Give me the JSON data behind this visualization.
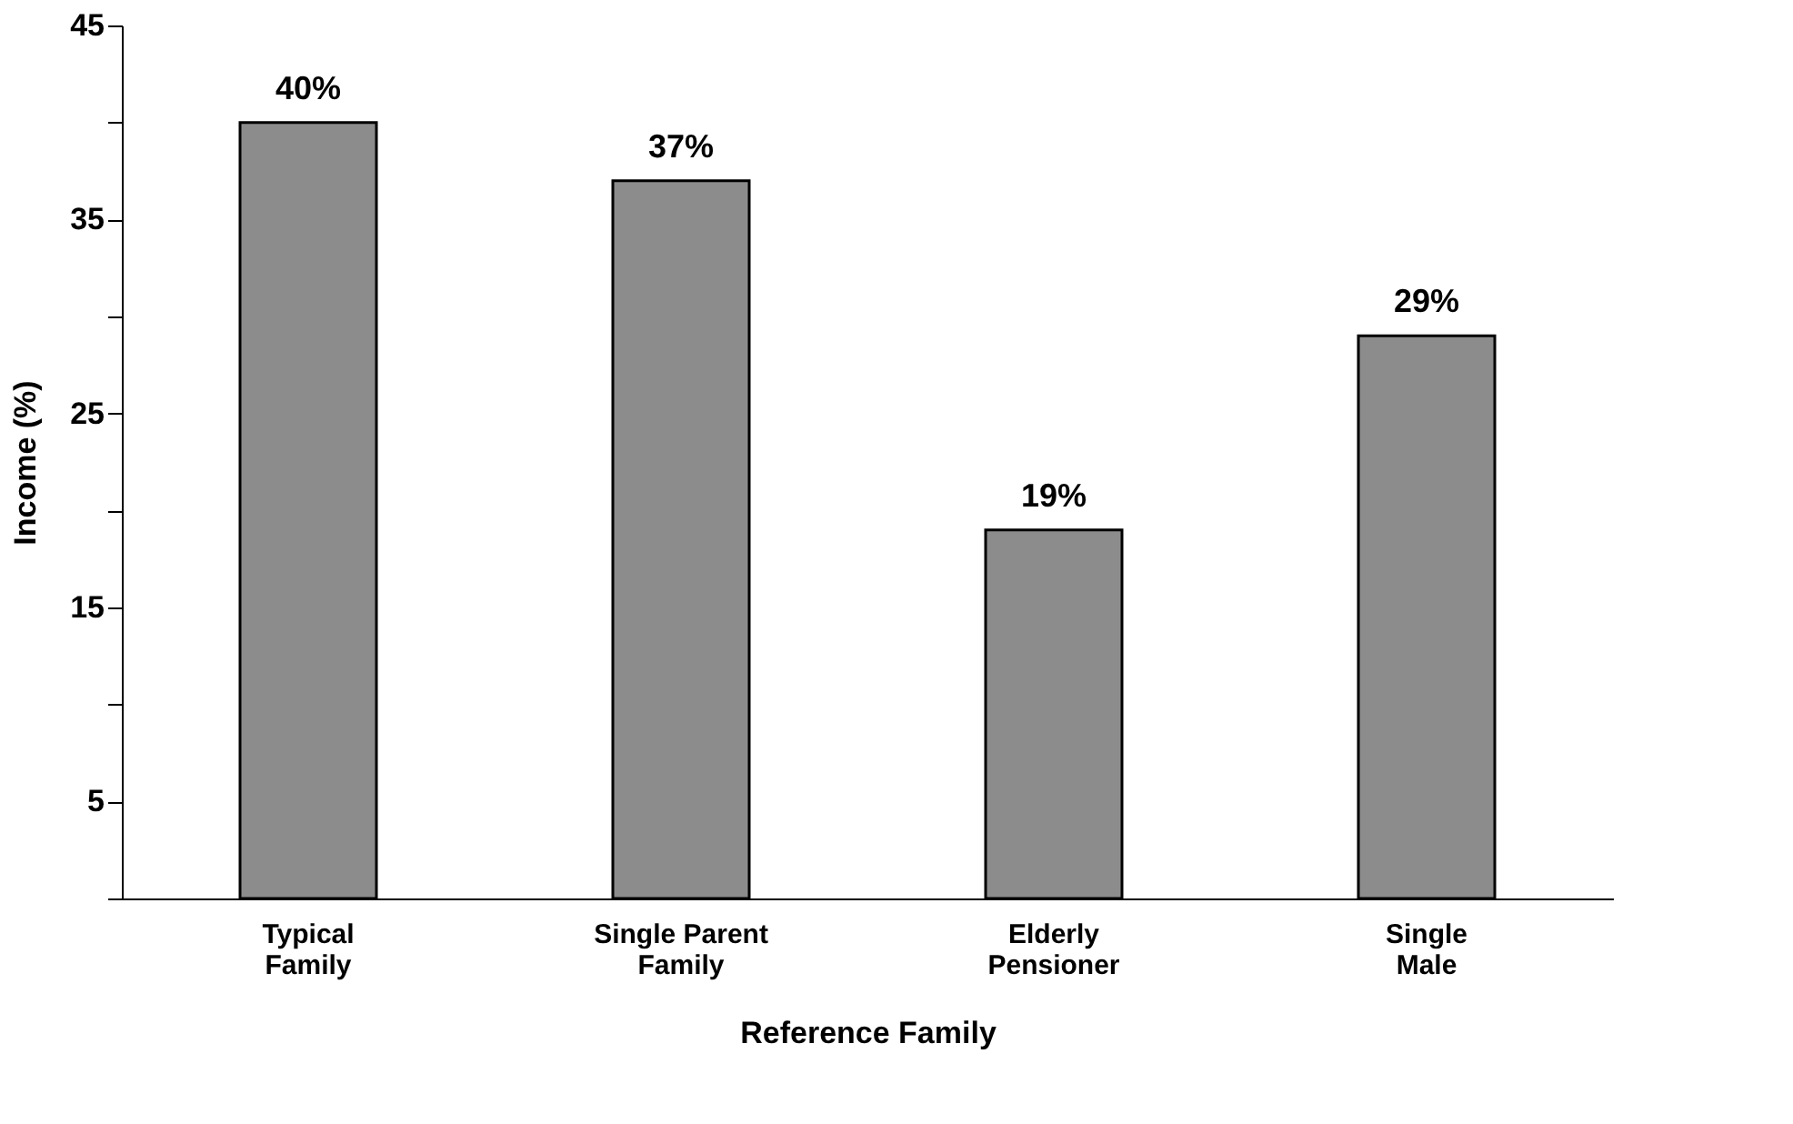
{
  "chart_data": {
    "type": "bar",
    "xlabel": "Reference Family",
    "ylabel": "Income (%)",
    "categories": [
      "Typical\nFamily",
      "Single Parent\nFamily",
      "Elderly\nPensioner",
      "Single\nMale"
    ],
    "values": [
      40,
      37,
      19,
      29
    ],
    "value_labels": [
      "40%",
      "37%",
      "19%",
      "29%"
    ],
    "color": "#8c8c8c",
    "ylim": [
      0,
      45
    ],
    "yticks": [
      {
        "value": 0,
        "label": null
      },
      5,
      {
        "value": 10,
        "label": null
      },
      15,
      {
        "value": 20,
        "label": null
      },
      25,
      {
        "value": 30,
        "label": null
      },
      35,
      {
        "value": 40,
        "label": null
      },
      45
    ],
    "grid": false
  }
}
